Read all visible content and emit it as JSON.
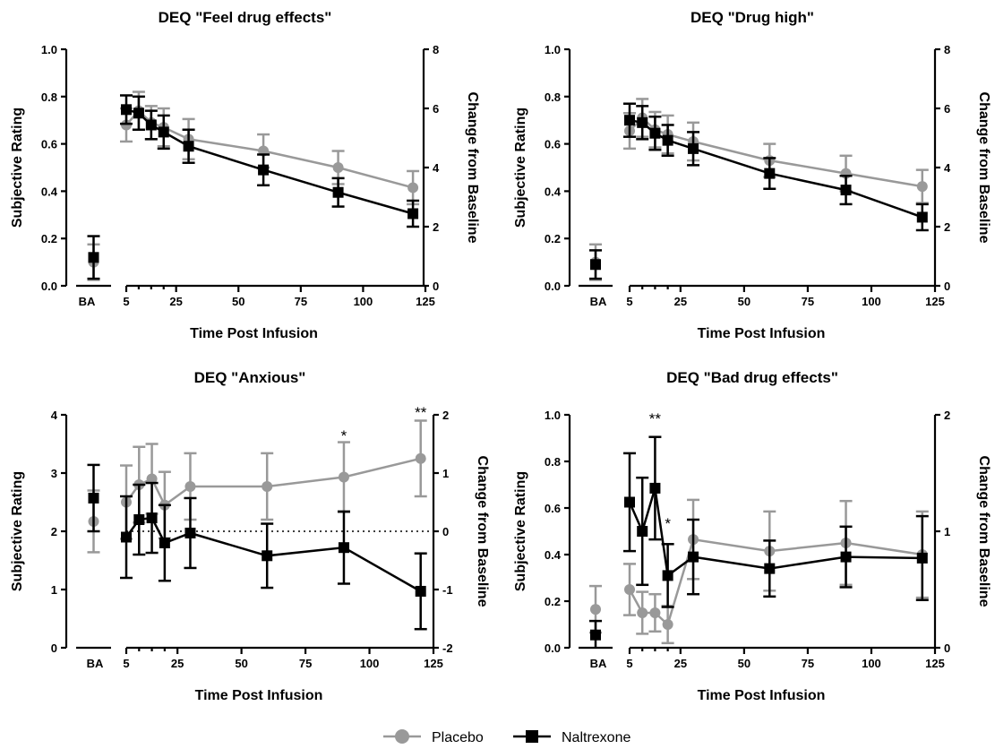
{
  "colors": {
    "placebo": "#999999",
    "naltrexone": "#000000"
  },
  "legend": {
    "position": "bottom-center",
    "items": [
      {
        "name": "Placebo",
        "marker": "circle",
        "color": "#999999"
      },
      {
        "name": "Naltrexone",
        "marker": "square",
        "color": "#000000"
      }
    ]
  },
  "chart_data": [
    {
      "type": "line",
      "title": "DEQ \"Feel drug effects\"",
      "xlabel": "Time Post Infusion",
      "ylabel": "Subjective  Rating",
      "y2label": "Change from Baseline",
      "baseline_label": "BA",
      "x_ticks": [
        5,
        25,
        50,
        75,
        100,
        125
      ],
      "x_range": [
        5,
        125
      ],
      "ylim": [
        0,
        1.0
      ],
      "y_ticks": [
        "0.0",
        "0.2",
        "0.4",
        "0.6",
        "0.8",
        "1.0"
      ],
      "y2lim": [
        0,
        8
      ],
      "y2_ticks": [
        "0",
        "2",
        "4",
        "6",
        "8"
      ],
      "x": [
        5,
        10,
        15,
        20,
        30,
        60,
        90,
        120
      ],
      "series": [
        {
          "name": "Placebo",
          "baseline": {
            "mean": 0.1,
            "err": 0.075
          },
          "mean": [
            0.68,
            0.74,
            0.69,
            0.67,
            0.62,
            0.57,
            0.5,
            0.415
          ],
          "err": [
            0.07,
            0.08,
            0.07,
            0.08,
            0.085,
            0.07,
            0.07,
            0.07
          ]
        },
        {
          "name": "Naltrexone",
          "baseline": {
            "mean": 0.12,
            "err": 0.09
          },
          "mean": [
            0.745,
            0.73,
            0.68,
            0.65,
            0.59,
            0.49,
            0.395,
            0.305
          ],
          "err": [
            0.06,
            0.07,
            0.06,
            0.07,
            0.07,
            0.065,
            0.06,
            0.055
          ]
        }
      ],
      "dotted_line": null,
      "annotations": []
    },
    {
      "type": "line",
      "title": "DEQ \"Drug high\"",
      "xlabel": "Time Post Infusion",
      "ylabel": "Subjective  Rating",
      "y2label": "Change from Baseline",
      "baseline_label": "BA",
      "x_ticks": [
        5,
        25,
        50,
        75,
        100,
        125
      ],
      "x_range": [
        5,
        125
      ],
      "ylim": [
        0,
        1.0
      ],
      "y_ticks": [
        "0.0",
        "0.2",
        "0.4",
        "0.6",
        "0.8",
        "1.0"
      ],
      "y2lim": [
        0,
        8
      ],
      "y2_ticks": [
        "0",
        "2",
        "4",
        "6",
        "8"
      ],
      "x": [
        5,
        10,
        15,
        20,
        30,
        60,
        90,
        120
      ],
      "series": [
        {
          "name": "Placebo",
          "baseline": {
            "mean": 0.1,
            "err": 0.075
          },
          "mean": [
            0.655,
            0.71,
            0.66,
            0.64,
            0.61,
            0.53,
            0.475,
            0.42
          ],
          "err": [
            0.075,
            0.08,
            0.075,
            0.08,
            0.08,
            0.07,
            0.075,
            0.07
          ]
        },
        {
          "name": "Naltrexone",
          "baseline": {
            "mean": 0.09,
            "err": 0.06
          },
          "mean": [
            0.7,
            0.69,
            0.645,
            0.615,
            0.58,
            0.475,
            0.405,
            0.29
          ],
          "err": [
            0.07,
            0.07,
            0.07,
            0.065,
            0.07,
            0.065,
            0.06,
            0.055
          ]
        }
      ],
      "dotted_line": null,
      "annotations": []
    },
    {
      "type": "line",
      "title": "DEQ \"Anxious\"",
      "xlabel": "Time Post Infusion",
      "ylabel": "Subjective  Rating",
      "y2label": "Change from Baseline",
      "baseline_label": "BA",
      "x_ticks": [
        5,
        25,
        50,
        75,
        100,
        125
      ],
      "x_range": [
        5,
        125
      ],
      "ylim": [
        0,
        4
      ],
      "y_ticks": [
        "0",
        "1",
        "2",
        "3",
        "4"
      ],
      "y2lim": [
        -2,
        2
      ],
      "y2_ticks": [
        "-2",
        "-1",
        "0",
        "1",
        "2"
      ],
      "x": [
        5,
        10,
        15,
        20,
        30,
        60,
        90,
        120
      ],
      "series": [
        {
          "name": "Placebo",
          "baseline": {
            "mean": 2.17,
            "err": 0.53
          },
          "mean": [
            2.5,
            2.8,
            2.9,
            2.45,
            2.77,
            2.77,
            2.93,
            3.25
          ],
          "err": [
            0.63,
            0.65,
            0.6,
            0.57,
            0.57,
            0.57,
            0.6,
            0.65
          ]
        },
        {
          "name": "Naltrexone",
          "baseline": {
            "mean": 2.57,
            "err": 0.57
          },
          "mean": [
            1.9,
            2.2,
            2.23,
            1.8,
            1.97,
            1.58,
            1.72,
            0.97
          ],
          "err": [
            0.7,
            0.6,
            0.6,
            0.65,
            0.6,
            0.55,
            0.62,
            0.65
          ]
        }
      ],
      "dotted_line": {
        "y": 2
      },
      "annotations": [
        {
          "x": 90,
          "y": 3.65,
          "text": "*"
        },
        {
          "x": 120,
          "y": 4.05,
          "text": "**"
        }
      ]
    },
    {
      "type": "line",
      "title": "DEQ \"Bad drug effects\"",
      "xlabel": "Time Post Infusion",
      "ylabel": "Subjective  Rating",
      "y2label": "Change from Baseline",
      "baseline_label": "BA",
      "x_ticks": [
        5,
        25,
        50,
        75,
        100,
        125
      ],
      "x_range": [
        5,
        125
      ],
      "ylim": [
        0,
        1.0
      ],
      "y_ticks": [
        "0.0",
        "0.2",
        "0.4",
        "0.6",
        "0.8",
        "1.0"
      ],
      "y2lim": [
        0,
        2
      ],
      "y2_ticks": [
        "0",
        "1",
        "2"
      ],
      "x": [
        5,
        10,
        15,
        20,
        30,
        60,
        90,
        120
      ],
      "series": [
        {
          "name": "Placebo",
          "baseline": {
            "mean": 0.165,
            "err": 0.1
          },
          "mean": [
            0.25,
            0.15,
            0.15,
            0.1,
            0.465,
            0.415,
            0.45,
            0.4
          ],
          "err": [
            0.11,
            0.09,
            0.08,
            0.08,
            0.17,
            0.17,
            0.18,
            0.185
          ]
        },
        {
          "name": "Naltrexone",
          "baseline": {
            "mean": 0.055,
            "err": 0.06
          },
          "mean": [
            0.625,
            0.5,
            0.685,
            0.31,
            0.39,
            0.34,
            0.39,
            0.385
          ],
          "err": [
            0.21,
            0.23,
            0.22,
            0.135,
            0.16,
            0.12,
            0.13,
            0.18
          ]
        }
      ],
      "dotted_line": null,
      "annotations": [
        {
          "x": 15,
          "y": 0.985,
          "text": "**"
        },
        {
          "x": 20,
          "y": 0.535,
          "text": "*"
        }
      ]
    }
  ]
}
